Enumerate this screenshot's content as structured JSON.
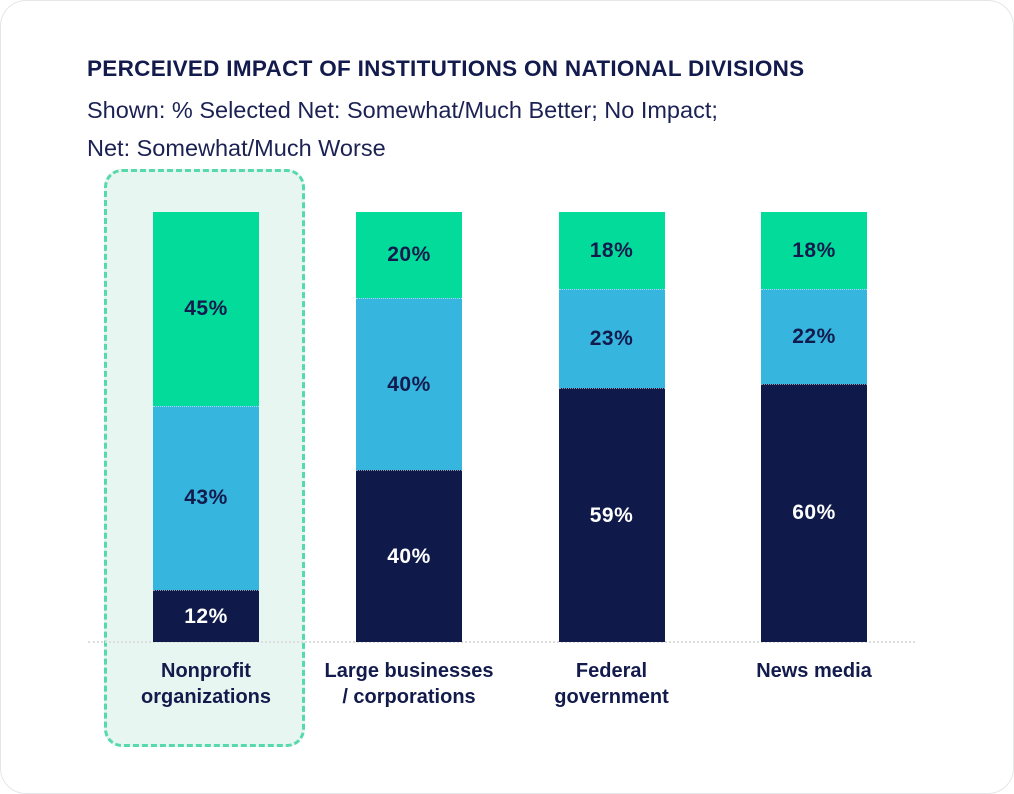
{
  "chart_data": {
    "type": "bar",
    "variant": "stacked-100",
    "title": "PERCEIVED IMPACT OF INSTITUTIONS ON NATIONAL DIVISIONS",
    "subtitle_lines": [
      "Shown: % Selected Net: Somewhat/Much Better; No Impact;",
      "Net: Somewhat/Much Worse"
    ],
    "categories": [
      {
        "id": "nonprofit-organizations",
        "label": "Nonprofit organizations",
        "label_lines": [
          "Nonprofit",
          "organizations"
        ],
        "highlighted": true
      },
      {
        "id": "large-businesses-corporations",
        "label": "Large businesses / corporations",
        "label_lines": [
          "Large businesses",
          "/ corporations"
        ],
        "highlighted": false
      },
      {
        "id": "federal-government",
        "label": "Federal government",
        "label_lines": [
          "Federal",
          "government"
        ],
        "highlighted": false
      },
      {
        "id": "news-media",
        "label": "News media",
        "label_lines": [
          "News media"
        ],
        "highlighted": false
      }
    ],
    "series": [
      {
        "name": "Net: Somewhat/Much Better",
        "color": "#03DB9B",
        "label_color": "#131B4D",
        "values": [
          45,
          20,
          18,
          18
        ]
      },
      {
        "name": "No Impact",
        "color": "#36B5DF",
        "label_color": "#131B4D",
        "values": [
          43,
          40,
          23,
          22
        ]
      },
      {
        "name": "Net: Somewhat/Much Worse",
        "color": "#101A4A",
        "label_color": "#FFFFFF",
        "values": [
          12,
          40,
          59,
          60
        ]
      }
    ],
    "value_suffix": "%",
    "ylim": [
      0,
      100
    ],
    "grid": false,
    "legend_position": "none",
    "value_labels": [
      "45%",
      "43%",
      "12%",
      "20%",
      "40%",
      "40%",
      "18%",
      "23%",
      "59%",
      "18%",
      "22%",
      "60%"
    ]
  },
  "style": {
    "title_color": "#131B4D",
    "highlight_fill": "#E7F6F0",
    "highlight_border": "#57D9AC",
    "axis_line_color": "#DDDDDD",
    "card_border": "#E4E6E8"
  }
}
